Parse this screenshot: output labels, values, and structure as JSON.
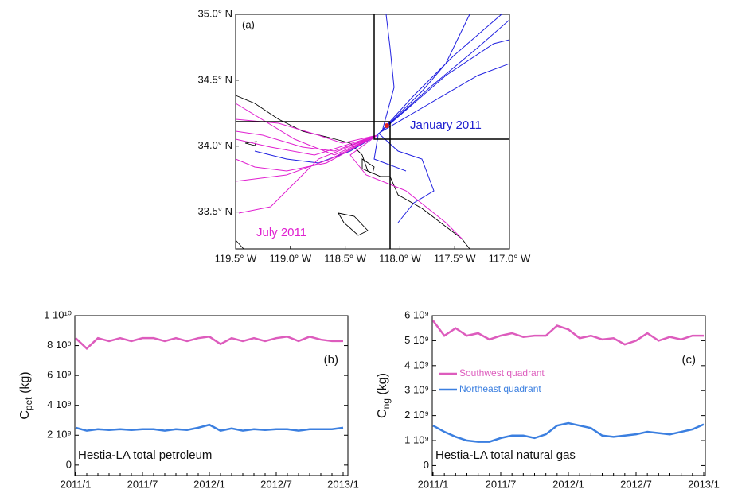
{
  "chart_data": [
    {
      "type": "map",
      "title": "(a)",
      "xlim": [
        -119.5,
        -117.0
      ],
      "ylim": [
        33.22,
        35.0
      ],
      "xticks": [
        {
          "value": -119.5,
          "label": "119.5° W"
        },
        {
          "value": -119.0,
          "label": "119.0° W"
        },
        {
          "value": -118.5,
          "label": "118.5° W"
        },
        {
          "value": -118.0,
          "label": "118.0° W"
        },
        {
          "value": -117.5,
          "label": "117.5° W"
        },
        {
          "value": -117.0,
          "label": "117.0° W"
        }
      ],
      "yticks": [
        {
          "value": 35.0,
          "label": "35.0° N"
        },
        {
          "value": 34.5,
          "label": "34.5° N"
        },
        {
          "value": 34.0,
          "label": "34.0° N"
        },
        {
          "value": 33.5,
          "label": "33.5° N"
        }
      ],
      "annotations": [
        "January 2011",
        "July 2011"
      ]
    },
    {
      "type": "line",
      "title": "(b)",
      "annotation": "Hestia-LA total petroleum",
      "ylabel": {
        "main": "C",
        "sub": "pet",
        "unit": "(kg)"
      },
      "categories": [
        "2011/1",
        null,
        null,
        null,
        null,
        null,
        "2011/7",
        null,
        null,
        null,
        null,
        null,
        "2012/1",
        null,
        null,
        null,
        null,
        null,
        "2012/7",
        null,
        null,
        null,
        null,
        null,
        "2013/1"
      ],
      "ylim": [
        -700000000,
        10000000000
      ],
      "yticks": [
        0,
        {
          "value": 2000000000,
          "label": "2 10⁹"
        },
        {
          "value": 4000000000,
          "label": "4 10⁹"
        },
        {
          "value": 6000000000,
          "label": "6 10⁹"
        },
        {
          "value": 8000000000,
          "label": "8 10⁹"
        },
        {
          "value": 10000000000,
          "label": "1 10¹⁰"
        }
      ],
      "series": [
        {
          "color": "#dd5cbd",
          "values": [
            8500000000,
            7800000000,
            8500000000,
            8300000000,
            8500000000,
            8300000000,
            8500000000,
            8500000000,
            8300000000,
            8500000000,
            8300000000,
            8500000000,
            8600000000,
            8100000000,
            8500000000,
            8300000000,
            8500000000,
            8300000000,
            8500000000,
            8600000000,
            8300000000,
            8600000000,
            8400000000,
            8300000000,
            8300000000
          ]
        },
        {
          "color": "#3b7fe0",
          "values": [
            2500000000,
            2300000000,
            2400000000,
            2350000000,
            2400000000,
            2350000000,
            2400000000,
            2400000000,
            2300000000,
            2400000000,
            2350000000,
            2500000000,
            2700000000,
            2300000000,
            2450000000,
            2300000000,
            2400000000,
            2350000000,
            2400000000,
            2400000000,
            2300000000,
            2400000000,
            2400000000,
            2400000000,
            2500000000
          ]
        }
      ]
    },
    {
      "type": "line",
      "title": "(c)",
      "annotation": "Hestia-LA total natural gas",
      "ylabel": {
        "main": "C",
        "sub": "ng",
        "unit": "(kg)"
      },
      "categories": [
        "2011/1",
        null,
        null,
        null,
        null,
        null,
        "2011/7",
        null,
        null,
        null,
        null,
        null,
        "2012/1",
        null,
        null,
        null,
        null,
        null,
        "2012/7",
        null,
        null,
        null,
        null,
        null,
        "2013/1"
      ],
      "ylim": [
        -400000000,
        6000000000
      ],
      "yticks": [
        0,
        {
          "value": 1000000000,
          "label": "1 10⁹"
        },
        {
          "value": 2000000000,
          "label": "2 10⁹"
        },
        {
          "value": 3000000000,
          "label": "3 10⁹"
        },
        {
          "value": 4000000000,
          "label": "4 10⁹"
        },
        {
          "value": 5000000000,
          "label": "5 10⁹"
        },
        {
          "value": 6000000000,
          "label": "6 10⁹"
        }
      ],
      "series": [
        {
          "name": "Southwest quadrant",
          "color": "#dd5cbd",
          "values": [
            5800000000,
            5200000000,
            5500000000,
            5200000000,
            5300000000,
            5050000000,
            5200000000,
            5300000000,
            5150000000,
            5200000000,
            5200000000,
            5600000000,
            5450000000,
            5100000000,
            5200000000,
            5050000000,
            5100000000,
            4850000000,
            5000000000,
            5300000000,
            5000000000,
            5150000000,
            5050000000,
            5200000000,
            5200000000
          ]
        },
        {
          "name": "Northeast quadrant",
          "color": "#3b7fe0",
          "values": [
            1600000000,
            1350000000,
            1150000000,
            1000000000,
            950000000,
            950000000,
            1100000000,
            1200000000,
            1200000000,
            1100000000,
            1250000000,
            1600000000,
            1700000000,
            1600000000,
            1500000000,
            1200000000,
            1150000000,
            1200000000,
            1250000000,
            1350000000,
            1300000000,
            1250000000,
            1350000000,
            1450000000,
            1650000000
          ]
        }
      ]
    }
  ]
}
